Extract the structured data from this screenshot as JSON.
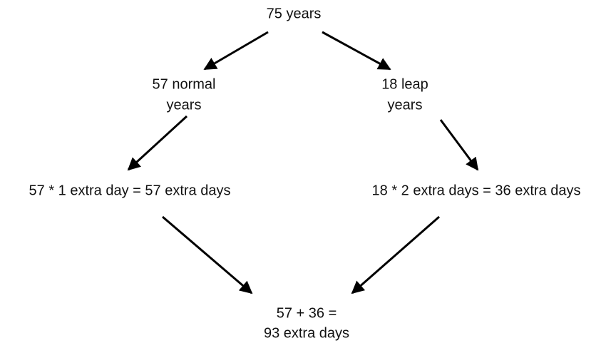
{
  "nodes": [
    {
      "lines": [
        "75 years"
      ]
    },
    {
      "lines": [
        "57 normal",
        "years"
      ]
    },
    {
      "lines": [
        "18 leap",
        "years"
      ]
    },
    {
      "lines": [
        "57 * 1 extra day = 57 extra days"
      ]
    },
    {
      "lines": [
        "18 * 2 extra days = 36 extra days"
      ]
    },
    {
      "lines": [
        "57 + 36 =",
        "93 extra days"
      ]
    }
  ]
}
